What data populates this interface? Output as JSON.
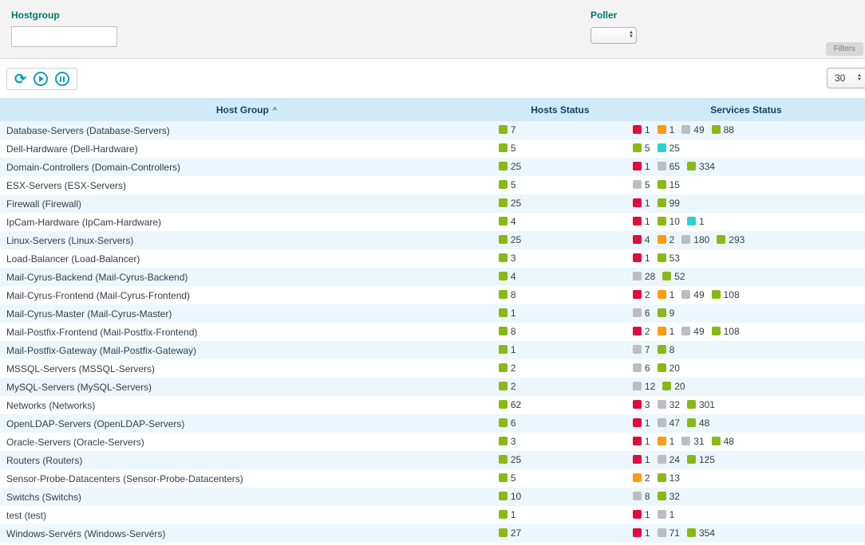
{
  "filters": {
    "hostgroup_label": "Hostgroup",
    "hostgroup_value": "",
    "poller_label": "Poller",
    "poller_value": "",
    "filters_button_label": "Filters"
  },
  "toolbar": {
    "page_size": "30",
    "refresh_icon_glyph": "⟳"
  },
  "table": {
    "columns": [
      "Host Group",
      "Hosts Status",
      "Services Status"
    ],
    "sort_indicator": "^",
    "rows": [
      {
        "name": "Database-Servers (Database-Servers)",
        "hosts": [
          {
            "color": "green",
            "count": "7"
          }
        ],
        "services": [
          {
            "color": "red",
            "count": "1"
          },
          {
            "color": "orange",
            "count": "1"
          },
          {
            "color": "gray",
            "count": "49"
          },
          {
            "color": "green",
            "count": "88"
          }
        ]
      },
      {
        "name": "Dell-Hardware (Dell-Hardware)",
        "hosts": [
          {
            "color": "green",
            "count": "5"
          }
        ],
        "services": [
          {
            "color": "green",
            "count": "5"
          },
          {
            "color": "cyan",
            "count": "25"
          }
        ]
      },
      {
        "name": "Domain-Controllers (Domain-Controllers)",
        "hosts": [
          {
            "color": "green",
            "count": "25"
          }
        ],
        "services": [
          {
            "color": "red",
            "count": "1"
          },
          {
            "color": "gray",
            "count": "65"
          },
          {
            "color": "green",
            "count": "334"
          }
        ]
      },
      {
        "name": "ESX-Servers (ESX-Servers)",
        "hosts": [
          {
            "color": "green",
            "count": "5"
          }
        ],
        "services": [
          {
            "color": "gray",
            "count": "5"
          },
          {
            "color": "green",
            "count": "15"
          }
        ]
      },
      {
        "name": "Firewall (Firewall)",
        "hosts": [
          {
            "color": "green",
            "count": "25"
          }
        ],
        "services": [
          {
            "color": "red",
            "count": "1"
          },
          {
            "color": "green",
            "count": "99"
          }
        ]
      },
      {
        "name": "IpCam-Hardware (IpCam-Hardware)",
        "hosts": [
          {
            "color": "green",
            "count": "4"
          }
        ],
        "services": [
          {
            "color": "red",
            "count": "1"
          },
          {
            "color": "green",
            "count": "10"
          },
          {
            "color": "cyan",
            "count": "1"
          }
        ]
      },
      {
        "name": "Linux-Servers (Linux-Servers)",
        "hosts": [
          {
            "color": "green",
            "count": "25"
          }
        ],
        "services": [
          {
            "color": "red",
            "count": "4"
          },
          {
            "color": "orange",
            "count": "2"
          },
          {
            "color": "gray",
            "count": "180"
          },
          {
            "color": "green",
            "count": "293"
          }
        ]
      },
      {
        "name": "Load-Balancer (Load-Balancer)",
        "hosts": [
          {
            "color": "green",
            "count": "3"
          }
        ],
        "services": [
          {
            "color": "red",
            "count": "1"
          },
          {
            "color": "green",
            "count": "53"
          }
        ]
      },
      {
        "name": "Mail-Cyrus-Backend (Mail-Cyrus-Backend)",
        "hosts": [
          {
            "color": "green",
            "count": "4"
          }
        ],
        "services": [
          {
            "color": "gray",
            "count": "28"
          },
          {
            "color": "green",
            "count": "52"
          }
        ]
      },
      {
        "name": "Mail-Cyrus-Frontend (Mail-Cyrus-Frontend)",
        "hosts": [
          {
            "color": "green",
            "count": "8"
          }
        ],
        "services": [
          {
            "color": "red",
            "count": "2"
          },
          {
            "color": "orange",
            "count": "1"
          },
          {
            "color": "gray",
            "count": "49"
          },
          {
            "color": "green",
            "count": "108"
          }
        ]
      },
      {
        "name": "Mail-Cyrus-Master (Mail-Cyrus-Master)",
        "hosts": [
          {
            "color": "green",
            "count": "1"
          }
        ],
        "services": [
          {
            "color": "gray",
            "count": "6"
          },
          {
            "color": "green",
            "count": "9"
          }
        ]
      },
      {
        "name": "Mail-Postfix-Frontend (Mail-Postfix-Frontend)",
        "hosts": [
          {
            "color": "green",
            "count": "8"
          }
        ],
        "services": [
          {
            "color": "red",
            "count": "2"
          },
          {
            "color": "orange",
            "count": "1"
          },
          {
            "color": "gray",
            "count": "49"
          },
          {
            "color": "green",
            "count": "108"
          }
        ]
      },
      {
        "name": "Mail-Postfix-Gateway (Mail-Postfix-Gateway)",
        "hosts": [
          {
            "color": "green",
            "count": "1"
          }
        ],
        "services": [
          {
            "color": "gray",
            "count": "7"
          },
          {
            "color": "green",
            "count": "8"
          }
        ]
      },
      {
        "name": "MSSQL-Servers (MSSQL-Servers)",
        "hosts": [
          {
            "color": "green",
            "count": "2"
          }
        ],
        "services": [
          {
            "color": "gray",
            "count": "6"
          },
          {
            "color": "green",
            "count": "20"
          }
        ]
      },
      {
        "name": "MySQL-Servers (MySQL-Servers)",
        "hosts": [
          {
            "color": "green",
            "count": "2"
          }
        ],
        "services": [
          {
            "color": "gray",
            "count": "12"
          },
          {
            "color": "green",
            "count": "20"
          }
        ]
      },
      {
        "name": "Networks (Networks)",
        "hosts": [
          {
            "color": "green",
            "count": "62"
          }
        ],
        "services": [
          {
            "color": "red",
            "count": "3"
          },
          {
            "color": "gray",
            "count": "32"
          },
          {
            "color": "green",
            "count": "301"
          }
        ]
      },
      {
        "name": "OpenLDAP-Servers (OpenLDAP-Servers)",
        "hosts": [
          {
            "color": "green",
            "count": "6"
          }
        ],
        "services": [
          {
            "color": "red",
            "count": "1"
          },
          {
            "color": "gray",
            "count": "47"
          },
          {
            "color": "green",
            "count": "48"
          }
        ]
      },
      {
        "name": "Oracle-Servers (Oracle-Servers)",
        "hosts": [
          {
            "color": "green",
            "count": "3"
          }
        ],
        "services": [
          {
            "color": "red",
            "count": "1"
          },
          {
            "color": "orange",
            "count": "1"
          },
          {
            "color": "gray",
            "count": "31"
          },
          {
            "color": "green",
            "count": "48"
          }
        ]
      },
      {
        "name": "Routers (Routers)",
        "hosts": [
          {
            "color": "green",
            "count": "25"
          }
        ],
        "services": [
          {
            "color": "red",
            "count": "1"
          },
          {
            "color": "gray",
            "count": "24"
          },
          {
            "color": "green",
            "count": "125"
          }
        ]
      },
      {
        "name": "Sensor-Probe-Datacenters (Sensor-Probe-Datacenters)",
        "hosts": [
          {
            "color": "green",
            "count": "5"
          }
        ],
        "services": [
          {
            "color": "orange",
            "count": "2"
          },
          {
            "color": "green",
            "count": "13"
          }
        ]
      },
      {
        "name": "Switchs (Switchs)",
        "hosts": [
          {
            "color": "green",
            "count": "10"
          }
        ],
        "services": [
          {
            "color": "gray",
            "count": "8"
          },
          {
            "color": "green",
            "count": "32"
          }
        ]
      },
      {
        "name": "test (test)",
        "hosts": [
          {
            "color": "green",
            "count": "1"
          }
        ],
        "services": [
          {
            "color": "red",
            "count": "1"
          },
          {
            "color": "gray",
            "count": "1"
          }
        ]
      },
      {
        "name": "Windows-Servérs (Windows-Servérs)",
        "hosts": [
          {
            "color": "green",
            "count": "27"
          }
        ],
        "services": [
          {
            "color": "red",
            "count": "1"
          },
          {
            "color": "gray",
            "count": "71"
          },
          {
            "color": "green",
            "count": "354"
          }
        ]
      }
    ]
  },
  "colors": {
    "green": "#88b917",
    "red": "#e00b3d",
    "orange": "#ff9a13",
    "gray": "#bcbdc0",
    "cyan": "#2ad1d4"
  }
}
